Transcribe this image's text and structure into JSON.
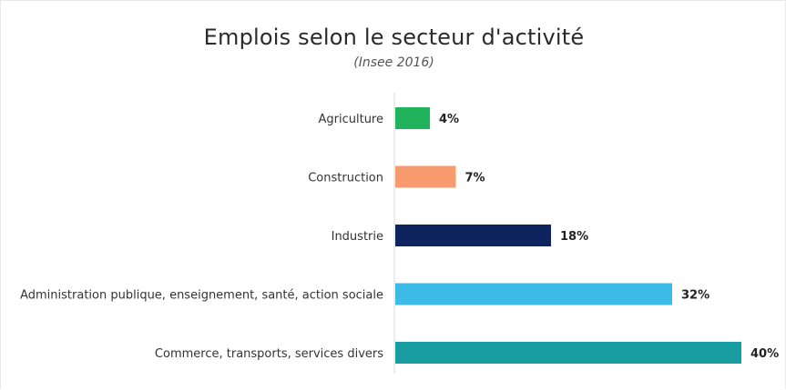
{
  "chart_data": {
    "type": "bar",
    "orientation": "horizontal",
    "title": "Emplois selon le secteur d'activité",
    "subtitle": "(Insee 2016)",
    "categories": [
      "Agriculture",
      "Construction",
      "Industrie",
      "Administration publique, enseignement, santé, action sociale",
      "Commerce, transports, services divers"
    ],
    "values": [
      4,
      7,
      18,
      32,
      40
    ],
    "value_labels": [
      "4%",
      "7%",
      "18%",
      "32%",
      "40%"
    ],
    "colors": [
      "#21b35b",
      "#f79b6e",
      "#0f235e",
      "#3cbbe6",
      "#1a9da0"
    ],
    "xlim": [
      0,
      40
    ],
    "grid": false,
    "legend": "none"
  }
}
